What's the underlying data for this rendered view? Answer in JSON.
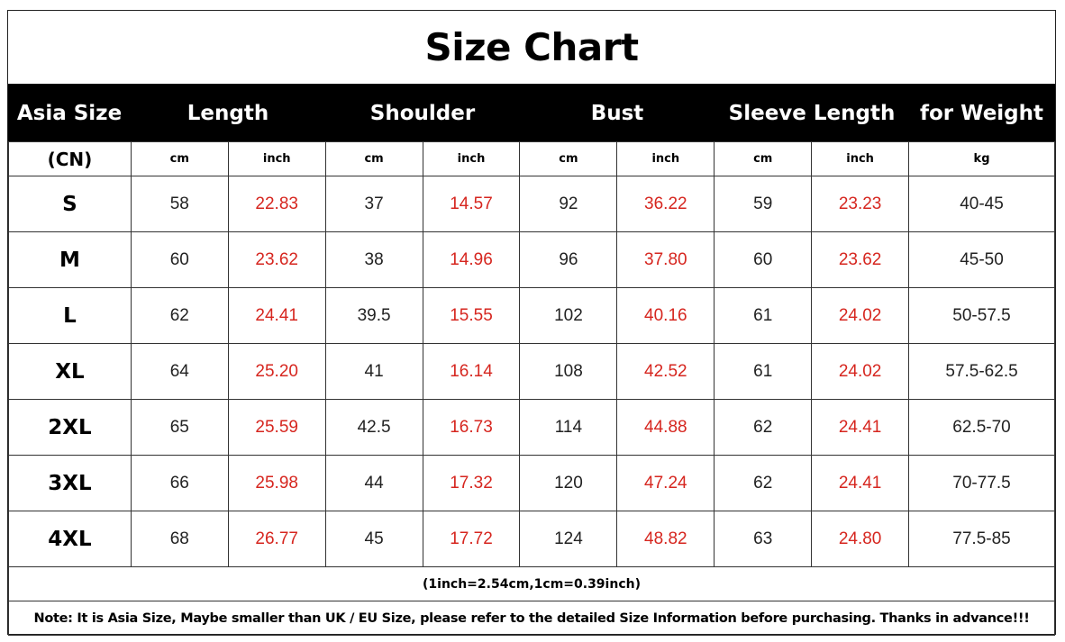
{
  "title": "Size Chart",
  "headers": [
    "Asia Size",
    "Length",
    "Shoulder",
    "Bust",
    "Sleeve Length",
    "for Weight"
  ],
  "units": [
    "(CN)",
    "cm",
    "inch",
    "cm",
    "inch",
    "cm",
    "inch",
    "cm",
    "inch",
    "kg"
  ],
  "rows": [
    [
      "S",
      "58",
      "22.83",
      "37",
      "14.57",
      "92",
      "36.22",
      "59",
      "23.23",
      "40-45"
    ],
    [
      "M",
      "60",
      "23.62",
      "38",
      "14.96",
      "96",
      "37.80",
      "60",
      "23.62",
      "45-50"
    ],
    [
      "L",
      "62",
      "24.41",
      "39.5",
      "15.55",
      "102",
      "40.16",
      "61",
      "24.02",
      "50-57.5"
    ],
    [
      "XL",
      "64",
      "25.20",
      "41",
      "16.14",
      "108",
      "42.52",
      "61",
      "24.02",
      "57.5-62.5"
    ],
    [
      "2XL",
      "65",
      "25.59",
      "42.5",
      "16.73",
      "114",
      "44.88",
      "62",
      "24.41",
      "62.5-70"
    ],
    [
      "3XL",
      "66",
      "25.98",
      "44",
      "17.32",
      "120",
      "47.24",
      "62",
      "24.41",
      "70-77.5"
    ],
    [
      "4XL",
      "68",
      "26.77",
      "45",
      "17.72",
      "124",
      "48.82",
      "63",
      "24.80",
      "77.5-85"
    ]
  ],
  "conversion_note": "(1inch=2.54cm,1cm=0.39inch)",
  "footer_note": "Note: It is Asia Size, Maybe smaller than UK / EU Size, please refer to the detailed Size Information before purchasing. Thanks in advance!!!",
  "colors": {
    "header_bg": "#000000",
    "header_text": "#ffffff",
    "inch_text": "#d6261f",
    "border": "#333333"
  }
}
